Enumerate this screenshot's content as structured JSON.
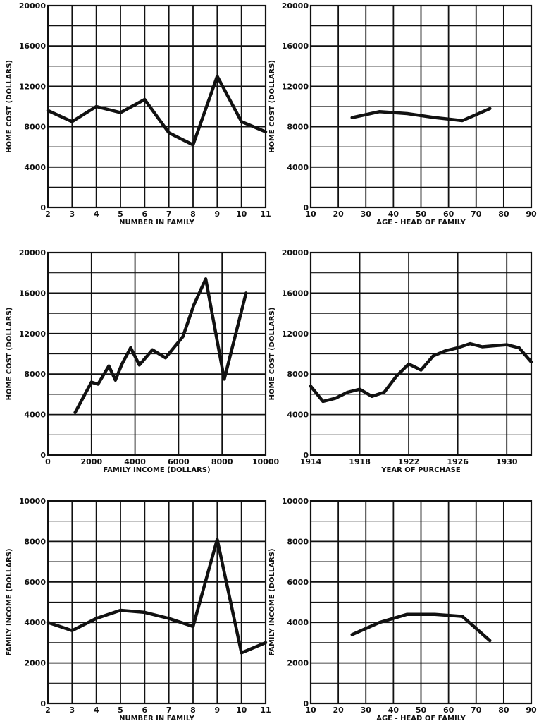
{
  "chart_data": [
    {
      "type": "line",
      "xlabel": "NUMBER IN FAMILY",
      "ylabel": "HOME COST (DOLLARS)",
      "xlim": [
        2,
        11
      ],
      "ylim": [
        0,
        20000
      ],
      "x_ticks": [
        2,
        3,
        4,
        5,
        6,
        7,
        8,
        9,
        10,
        11
      ],
      "x_tick_labels": [
        "2",
        "3",
        "4",
        "5",
        "6",
        "7",
        "8",
        "9",
        "10",
        "11"
      ],
      "y_ticks": [
        0,
        4000,
        8000,
        12000,
        16000,
        20000
      ],
      "y_tick_labels": [
        "0",
        "4000",
        "8000",
        "12000",
        "16000",
        "20000"
      ],
      "grid": true,
      "series": [
        {
          "x": [
            2,
            3,
            4,
            5,
            6,
            7,
            8,
            9,
            10,
            11
          ],
          "y": [
            9600,
            8500,
            10000,
            9400,
            10700,
            7400,
            6200,
            13000,
            8500,
            7500
          ]
        }
      ]
    },
    {
      "type": "line",
      "xlabel": "AGE - HEAD OF FAMILY",
      "ylabel": "HOME COST (DOLLARS)",
      "xlim": [
        10,
        90
      ],
      "ylim": [
        0,
        20000
      ],
      "x_ticks": [
        10,
        20,
        30,
        40,
        50,
        60,
        70,
        80,
        90
      ],
      "x_tick_labels": [
        "10",
        "20",
        "30",
        "40",
        "50",
        "60",
        "70",
        "80",
        "90"
      ],
      "y_ticks": [
        0,
        4000,
        8000,
        12000,
        16000,
        20000
      ],
      "y_tick_labels": [
        "0",
        "4000",
        "8000",
        "12000",
        "16000",
        "20000"
      ],
      "grid": true,
      "series": [
        {
          "x": [
            25,
            35,
            45,
            55,
            65,
            75
          ],
          "y": [
            8900,
            9500,
            9300,
            8900,
            8600,
            9800
          ]
        }
      ]
    },
    {
      "type": "line",
      "xlabel": "FAMILY INCOME (DOLLARS)",
      "ylabel": "HOME COST (DOLLARS)",
      "xlim": [
        0,
        10000
      ],
      "ylim": [
        0,
        20000
      ],
      "x_ticks": [
        0,
        2000,
        4000,
        6000,
        8000,
        10000
      ],
      "x_tick_labels": [
        "0",
        "2000",
        "4000",
        "6000",
        "8000",
        "10000"
      ],
      "y_ticks": [
        0,
        4000,
        8000,
        12000,
        16000,
        20000
      ],
      "y_tick_labels": [
        "0",
        "4000",
        "8000",
        "12000",
        "16000",
        "20000"
      ],
      "grid": true,
      "series": [
        {
          "x": [
            1250,
            2000,
            2300,
            2800,
            3100,
            3400,
            3800,
            4200,
            4800,
            5400,
            6200,
            6700,
            7250,
            8100,
            9100
          ],
          "y": [
            4200,
            7200,
            7000,
            8800,
            7400,
            9000,
            10600,
            8900,
            10400,
            9600,
            11700,
            14800,
            17400,
            7500,
            16000
          ]
        }
      ]
    },
    {
      "type": "line",
      "xlabel": "YEAR OF PURCHASE",
      "ylabel": "HOME COST (DOLLARS)",
      "xlim": [
        1914,
        1932
      ],
      "ylim": [
        0,
        20000
      ],
      "x_ticks": [
        1914,
        1918,
        1922,
        1926,
        1930
      ],
      "x_tick_labels": [
        "1914",
        "1918",
        "1922",
        "1926",
        "1930"
      ],
      "y_ticks": [
        0,
        4000,
        8000,
        12000,
        16000,
        20000
      ],
      "y_tick_labels": [
        "0",
        "4000",
        "8000",
        "12000",
        "16000",
        "20000"
      ],
      "grid": true,
      "series": [
        {
          "x": [
            1914,
            1915,
            1916,
            1917,
            1918,
            1919,
            1920,
            1921,
            1922,
            1923,
            1924,
            1925,
            1926,
            1927,
            1928,
            1929,
            1930,
            1931,
            1932
          ],
          "y": [
            6800,
            5300,
            5600,
            6200,
            6500,
            5800,
            6200,
            7800,
            9000,
            8400,
            9800,
            10300,
            10600,
            11000,
            10700,
            10800,
            10900,
            10600,
            9200
          ]
        }
      ]
    },
    {
      "type": "line",
      "xlabel": "NUMBER IN FAMILY",
      "ylabel": "FAMILY INCOME (DOLLARS)",
      "xlim": [
        2,
        11
      ],
      "ylim": [
        0,
        10000
      ],
      "x_ticks": [
        2,
        3,
        4,
        5,
        6,
        7,
        8,
        9,
        10,
        11
      ],
      "x_tick_labels": [
        "2",
        "3",
        "4",
        "5",
        "6",
        "7",
        "8",
        "9",
        "10",
        "11"
      ],
      "y_ticks": [
        0,
        2000,
        4000,
        6000,
        8000,
        10000
      ],
      "y_tick_labels": [
        "0",
        "2000",
        "4000",
        "6000",
        "8000",
        "10000"
      ],
      "grid": true,
      "series": [
        {
          "x": [
            2,
            3,
            4,
            5,
            6,
            7,
            8,
            9,
            10,
            11
          ],
          "y": [
            4000,
            3600,
            4200,
            4600,
            4500,
            4200,
            3800,
            8100,
            2500,
            3000
          ]
        }
      ]
    },
    {
      "type": "line",
      "xlabel": "AGE - HEAD OF FAMILY",
      "ylabel": "FAMILY INCOME (DOLLARS)",
      "xlim": [
        10,
        90
      ],
      "ylim": [
        0,
        10000
      ],
      "x_ticks": [
        10,
        20,
        30,
        40,
        50,
        60,
        70,
        80,
        90
      ],
      "x_tick_labels": [
        "10",
        "20",
        "30",
        "40",
        "50",
        "60",
        "70",
        "80",
        "90"
      ],
      "y_ticks": [
        0,
        2000,
        4000,
        6000,
        8000,
        10000
      ],
      "y_tick_labels": [
        "0",
        "2000",
        "4000",
        "6000",
        "8000",
        "10000"
      ],
      "grid": true,
      "series": [
        {
          "x": [
            25,
            35,
            45,
            55,
            65,
            75
          ],
          "y": [
            3400,
            4000,
            4400,
            4400,
            4300,
            3100
          ]
        }
      ]
    }
  ]
}
